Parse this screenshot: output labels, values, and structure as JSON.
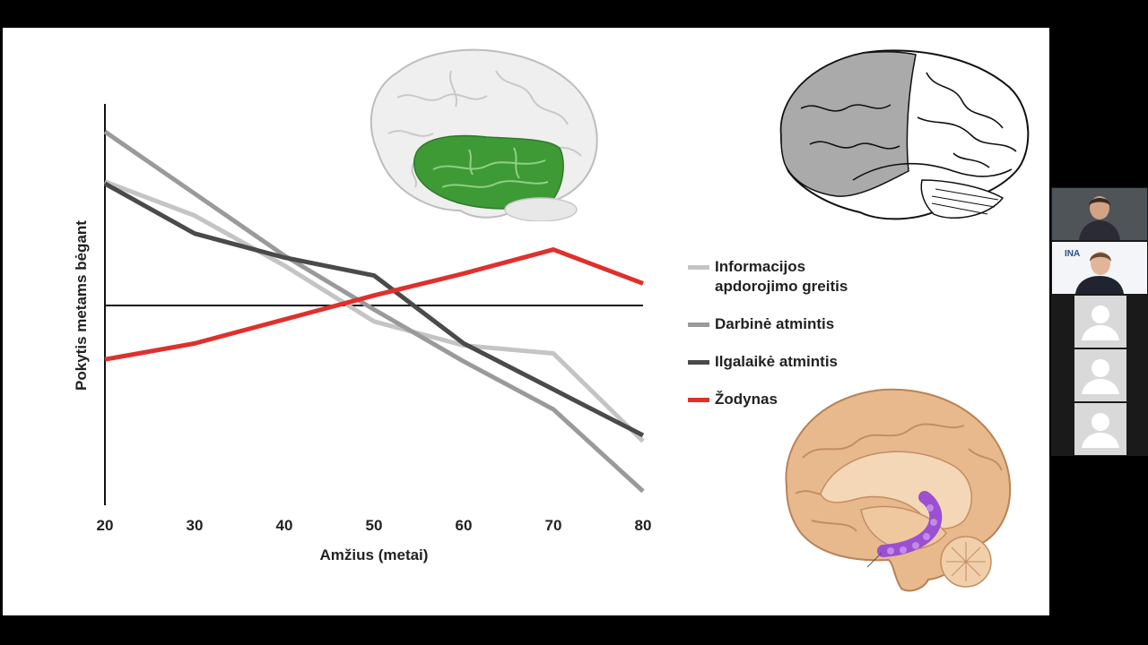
{
  "chart_data": {
    "type": "line",
    "xlabel": "Amžius (metai)",
    "ylabel": "Pokytis metams bėgant",
    "x": [
      20,
      30,
      40,
      50,
      60,
      70,
      80
    ],
    "x_tick_labels": [
      "20",
      "30",
      "40",
      "50",
      "60",
      "70",
      "80"
    ],
    "ylim": [
      -1,
      1
    ],
    "baseline": 0,
    "grid": false,
    "legend_position": "right",
    "series": [
      {
        "name": "Informacijos\napdorojimo greitis",
        "color": "#c4c4c4",
        "values": [
          0.62,
          0.45,
          0.2,
          -0.08,
          -0.2,
          -0.24,
          -0.68
        ]
      },
      {
        "name": "Darbinė atmintis",
        "color": "#9a9a9a",
        "values": [
          0.87,
          0.56,
          0.25,
          -0.02,
          -0.28,
          -0.52,
          -0.93
        ]
      },
      {
        "name": "Ilgalaikė atmintis",
        "color": "#4a4a4a",
        "values": [
          0.61,
          0.36,
          0.24,
          0.15,
          -0.19,
          -0.42,
          -0.65
        ]
      },
      {
        "name": "Žodynas",
        "color": "#e0302b",
        "values": [
          -0.27,
          -0.19,
          -0.07,
          0.05,
          0.16,
          0.28,
          0.11
        ]
      }
    ]
  },
  "images": {
    "brain1": "brain-lateral-temporal-highlight",
    "brain2": "brain-lateral-frontal-shaded",
    "brain3": "brain-sagittal-hippocampus"
  },
  "colors": {
    "slide_background": "#ffffff",
    "screen_background": "#000000",
    "temporal_lobe": "#3e9a35",
    "hippocampus": "#9b4fd1",
    "brain_tan": "#e8b98c"
  },
  "video_panel": {
    "participants": [
      "participant-1",
      "participant-2",
      "participant-3",
      "participant-4",
      "participant-5"
    ],
    "logo_text": "INA"
  }
}
